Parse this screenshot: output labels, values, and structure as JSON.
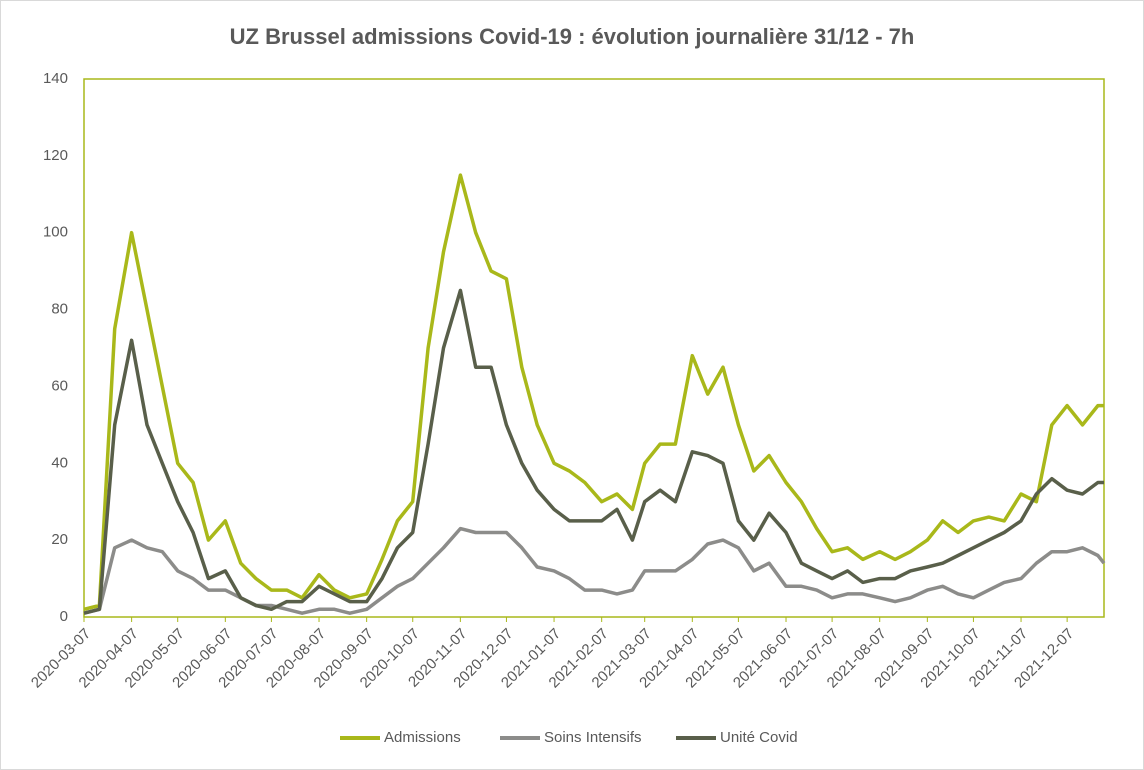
{
  "chart_data": {
    "type": "line",
    "title": "UZ Brussel admissions Covid-19 : évolution journalière 31/12 - 7h",
    "x": [
      "2020-03-07",
      "2020-03-17",
      "2020-03-27",
      "2020-04-07",
      "2020-04-17",
      "2020-04-27",
      "2020-05-07",
      "2020-05-17",
      "2020-05-27",
      "2020-06-07",
      "2020-06-17",
      "2020-06-27",
      "2020-07-07",
      "2020-07-17",
      "2020-07-27",
      "2020-08-07",
      "2020-08-17",
      "2020-08-27",
      "2020-09-07",
      "2020-09-17",
      "2020-09-27",
      "2020-10-07",
      "2020-10-17",
      "2020-10-27",
      "2020-11-07",
      "2020-11-17",
      "2020-11-27",
      "2020-12-07",
      "2020-12-17",
      "2020-12-27",
      "2021-01-07",
      "2021-01-17",
      "2021-01-27",
      "2021-02-07",
      "2021-02-17",
      "2021-02-27",
      "2021-03-07",
      "2021-03-17",
      "2021-03-27",
      "2021-04-07",
      "2021-04-17",
      "2021-04-27",
      "2021-05-07",
      "2021-05-17",
      "2021-05-27",
      "2021-06-07",
      "2021-06-17",
      "2021-06-27",
      "2021-07-07",
      "2021-07-17",
      "2021-07-27",
      "2021-08-07",
      "2021-08-17",
      "2021-08-27",
      "2021-09-07",
      "2021-09-17",
      "2021-09-27",
      "2021-10-07",
      "2021-10-17",
      "2021-10-27",
      "2021-11-07",
      "2021-11-17",
      "2021-11-27",
      "2021-12-07",
      "2021-12-17",
      "2021-12-27",
      "2021-12-31"
    ],
    "series": [
      {
        "name": "Admissions",
        "color": "#a9b81a",
        "values": [
          2,
          3,
          75,
          100,
          80,
          60,
          40,
          35,
          20,
          25,
          14,
          10,
          7,
          7,
          5,
          11,
          7,
          5,
          6,
          15,
          25,
          30,
          70,
          95,
          115,
          100,
          90,
          88,
          65,
          50,
          40,
          38,
          35,
          30,
          32,
          28,
          40,
          45,
          45,
          68,
          58,
          65,
          50,
          38,
          42,
          35,
          30,
          23,
          17,
          18,
          15,
          17,
          15,
          17,
          20,
          25,
          22,
          25,
          26,
          25,
          32,
          30,
          50,
          55,
          50,
          55,
          55
        ]
      },
      {
        "name": "Soins Intensifs",
        "color": "#8c8c8a",
        "values": [
          1,
          2,
          18,
          20,
          18,
          17,
          12,
          10,
          7,
          7,
          5,
          3,
          3,
          2,
          1,
          2,
          2,
          1,
          2,
          5,
          8,
          10,
          14,
          18,
          23,
          22,
          22,
          22,
          18,
          13,
          12,
          10,
          7,
          7,
          6,
          7,
          12,
          12,
          12,
          15,
          19,
          20,
          18,
          12,
          14,
          8,
          8,
          7,
          5,
          6,
          6,
          5,
          4,
          5,
          7,
          8,
          6,
          5,
          7,
          9,
          10,
          14,
          17,
          17,
          18,
          16,
          14
        ]
      },
      {
        "name": "Unité Covid",
        "color": "#595f4a",
        "values": [
          1,
          2,
          50,
          72,
          50,
          40,
          30,
          22,
          10,
          12,
          5,
          3,
          2,
          4,
          4,
          8,
          6,
          4,
          4,
          10,
          18,
          22,
          45,
          70,
          85,
          65,
          65,
          50,
          40,
          33,
          28,
          25,
          25,
          25,
          28,
          20,
          30,
          33,
          30,
          43,
          42,
          40,
          25,
          20,
          27,
          22,
          14,
          12,
          10,
          12,
          9,
          10,
          10,
          12,
          13,
          14,
          16,
          18,
          20,
          22,
          25,
          32,
          36,
          33,
          32,
          35,
          35
        ]
      }
    ],
    "xlim": [
      "2020-03-07",
      "2021-12-31"
    ],
    "xticks": [
      "2020-03-07",
      "2020-04-07",
      "2020-05-07",
      "2020-06-07",
      "2020-07-07",
      "2020-08-07",
      "2020-09-07",
      "2020-10-07",
      "2020-11-07",
      "2020-12-07",
      "2021-01-07",
      "2021-02-07",
      "2021-03-07",
      "2021-04-07",
      "2021-05-07",
      "2021-06-07",
      "2021-07-07",
      "2021-08-07",
      "2021-09-07",
      "2021-10-07",
      "2021-11-07",
      "2021-12-07"
    ],
    "ylim": [
      0,
      140
    ],
    "yticks": [
      0,
      20,
      40,
      60,
      80,
      100,
      120,
      140
    ],
    "grid": false,
    "legend": "bottom"
  }
}
